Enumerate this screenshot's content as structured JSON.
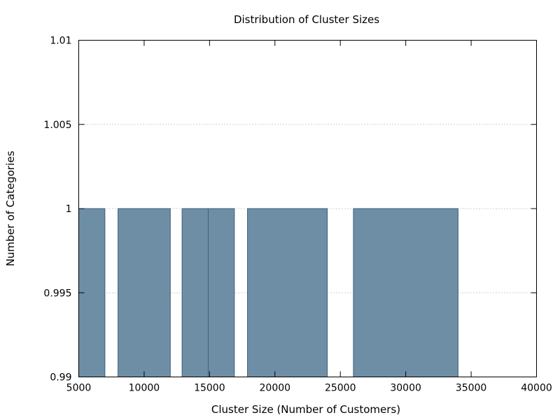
{
  "chart_data": {
    "type": "bar",
    "title": "Distribution of Cluster Sizes",
    "xlabel": "Cluster Size (Number of Customers)",
    "ylabel": "Number of Categories",
    "xlim": [
      5000,
      40000
    ],
    "ylim": [
      0.99,
      1.01
    ],
    "xticks": [
      5000,
      10000,
      15000,
      20000,
      25000,
      30000,
      35000,
      40000
    ],
    "xtick_labels": [
      "5000",
      "10000",
      "15000",
      "20000",
      "25000",
      "30000",
      "35000",
      "40000"
    ],
    "yticks": [
      0.99,
      0.995,
      1,
      1.005,
      1.01
    ],
    "ytick_labels": [
      "0.99",
      "0.995",
      "1",
      "1.005",
      "1.01"
    ],
    "grid": "horizontal dotted",
    "bar_color": "#6e8ea6",
    "bar_edge_color": "#3f5f7a",
    "bars": [
      {
        "x0": 5000,
        "x1": 7000,
        "value": 1
      },
      {
        "x0": 8000,
        "x1": 12000,
        "value": 1
      },
      {
        "x0": 12900,
        "x1": 14900,
        "value": 1
      },
      {
        "x0": 14900,
        "x1": 16900,
        "value": 1
      },
      {
        "x0": 17900,
        "x1": 24000,
        "value": 1
      },
      {
        "x0": 26000,
        "x1": 34000,
        "value": 1
      }
    ]
  }
}
